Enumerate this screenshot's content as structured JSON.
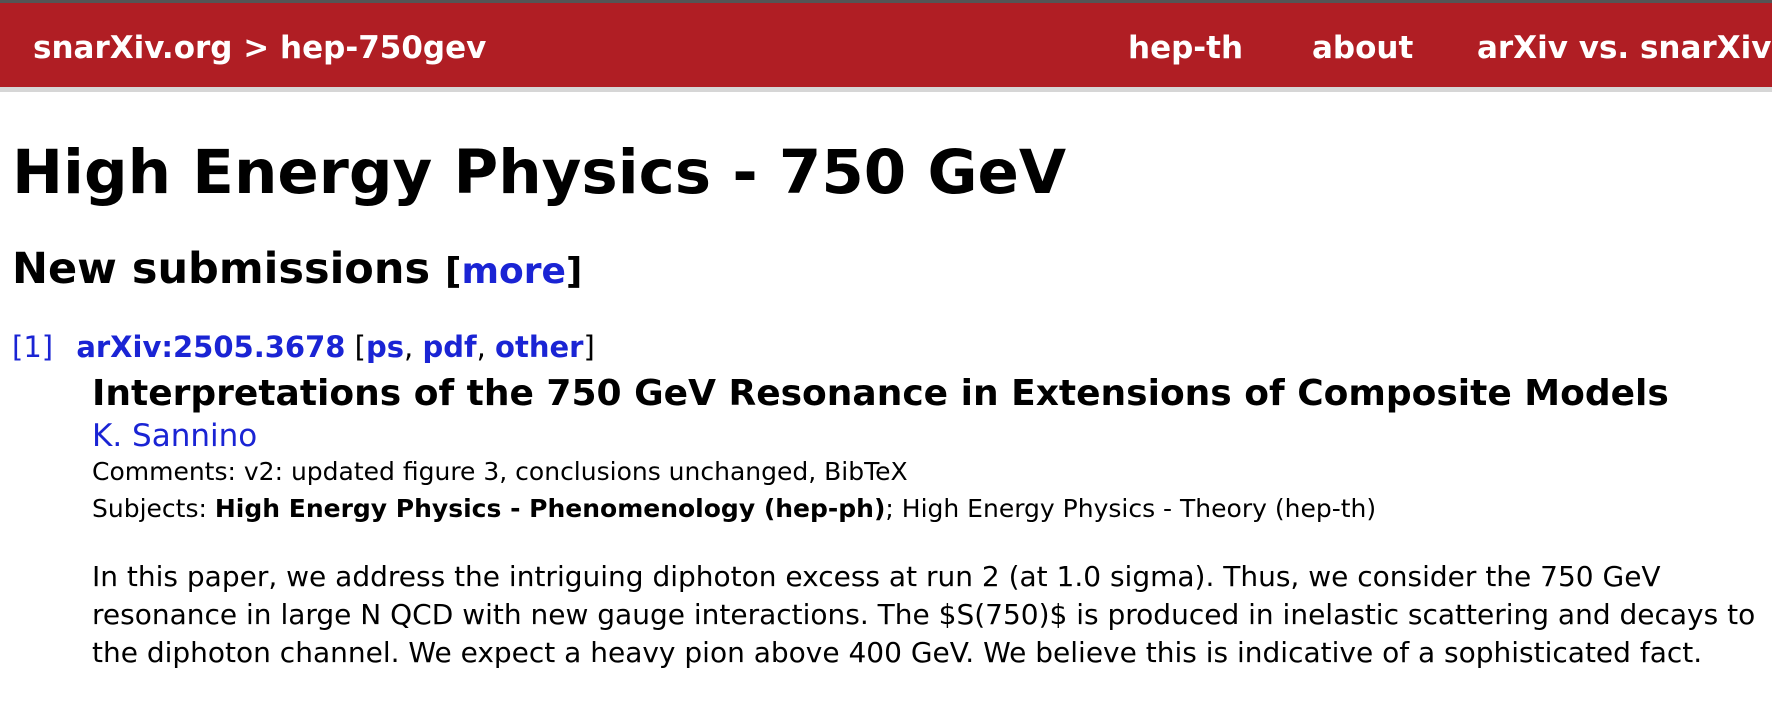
{
  "header": {
    "breadcrumb": "snarXiv.org > hep-750gev",
    "nav": [
      "hep-th",
      "about",
      "arXiv vs. snarXiv"
    ],
    "background_color": "#b01e24"
  },
  "page_title": "High Energy Physics - 750 GeV",
  "section": {
    "title": "New submissions",
    "more_link": "more"
  },
  "entry": {
    "number": "[1]",
    "arxiv_id": "arXiv:2505.3678",
    "formats": [
      "ps",
      "pdf",
      "other"
    ],
    "title": "Interpretations of the 750 GeV Resonance in Extensions of Composite Models",
    "author": "K. Sannino",
    "comments_label": "Comments:",
    "comments": "v2: updated figure 3, conclusions unchanged, BibTeX",
    "subjects_label": "Subjects:",
    "primary_subject": "High Energy Physics - Phenomenology (hep-ph)",
    "secondary_subject": "High Energy Physics - Theory (hep-th)",
    "abstract": "In this paper, we address the intriguing diphoton excess at run 2 (at 1.0 sigma). Thus, we consider the 750 GeV resonance in large N QCD with new gauge interactions. The $S(750)$ is produced in inelastic scattering and decays to the diphoton channel. We expect a heavy pion above 400 GeV. We believe this is indicative of a sophisticated fact."
  },
  "colors": {
    "link": "#1a24d4",
    "text": "#000000"
  }
}
